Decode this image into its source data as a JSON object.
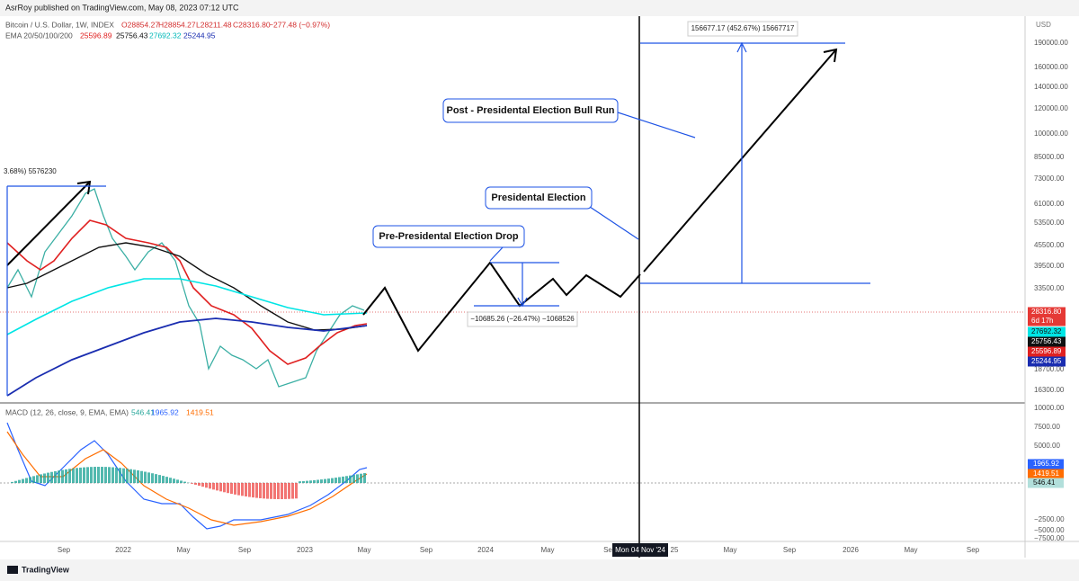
{
  "header": {
    "title": "AsrRoy published on TradingView.com, May 08, 2023 07:12 UTC"
  },
  "legend": {
    "symbol": "Bitcoin / U.S. Dollar, 1W, INDEX",
    "open": "O28854.27",
    "high": "H28854.27",
    "low": "L28211.48",
    "close": "C28316.80",
    "change": "−277.48 (−0.97%)",
    "ema_label": "EMA 20/50/100/200",
    "ema_values": [
      "25596.89",
      "25756.43",
      "27692.32",
      "25244.95"
    ]
  },
  "annotations": {
    "target_measure": "156677.17 (452.67%) 15667717",
    "bull_run": "Post - Presidental Election Bull Run",
    "election": "Presidental Election",
    "drop": "Pre-Presidental Election Drop",
    "left_measure": "3.68%) 5576230",
    "drop_measure": "−10685.26 (−26.47%) −1068526"
  },
  "price_axis": {
    "currency": "USD",
    "ticks": [
      "190000.00",
      "160000.00",
      "140000.00",
      "120000.00",
      "100000.00",
      "85000.00",
      "73000.00",
      "61000.00",
      "53500.00",
      "45500.00",
      "39500.00",
      "33500.00",
      "18700.00",
      "16300.00"
    ]
  },
  "price_tags": {
    "last": "28316.80",
    "countdown": "6d 17h",
    "ema_100": "27692.32",
    "ema_50": "25756.43",
    "ema_20": "25596.89",
    "ema_200": "25244.95"
  },
  "macd": {
    "label": "MACD (12, 26, close, 9, EMA, EMA)",
    "values": [
      "546.41",
      "1965.92",
      "1419.51"
    ],
    "ticks": [
      "10000.00",
      "7500.00",
      "5000.00",
      "−2500.00",
      "−5000.00",
      "−7500.00"
    ]
  },
  "time_axis": {
    "labels": [
      "Sep",
      "2022",
      "May",
      "Sep",
      "2023",
      "May",
      "Sep",
      "2024",
      "May",
      "Se",
      "25",
      "May",
      "Sep",
      "2026",
      "May",
      "Sep"
    ],
    "crosshair": "Mon 04 Nov '24"
  },
  "footer": {
    "brand": "TradingView"
  }
}
